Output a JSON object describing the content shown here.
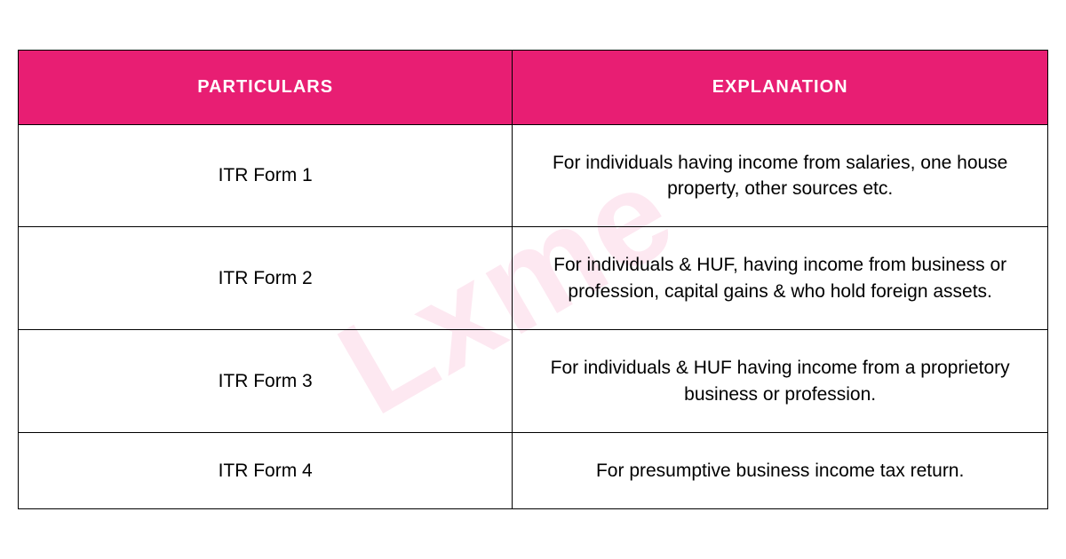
{
  "watermark": {
    "text": "Lxme",
    "color": "rgba(232, 30, 115, 0.1)",
    "fontsize": 150,
    "rotation": -30
  },
  "table": {
    "type": "table",
    "header_bg": "#e81e73",
    "header_color": "#ffffff",
    "header_fontsize": 20,
    "cell_fontsize": 21,
    "cell_color": "#000000",
    "border_color": "#000000",
    "background_color": "#ffffff",
    "columns": [
      {
        "label": "PARTICULARS",
        "width": "48%"
      },
      {
        "label": "EXPLANATION",
        "width": "52%"
      }
    ],
    "rows": [
      {
        "particulars": "ITR Form 1",
        "explanation": "For individuals having income from salaries, one house property, other sources etc."
      },
      {
        "particulars": "ITR Form 2",
        "explanation": "For individuals & HUF, having income from business or profession, capital gains & who hold foreign assets."
      },
      {
        "particulars": "ITR Form 3",
        "explanation": "For individuals & HUF having income from a proprietory business or profession."
      },
      {
        "particulars": "ITR Form 4",
        "explanation": "For presumptive business income tax return."
      }
    ]
  }
}
